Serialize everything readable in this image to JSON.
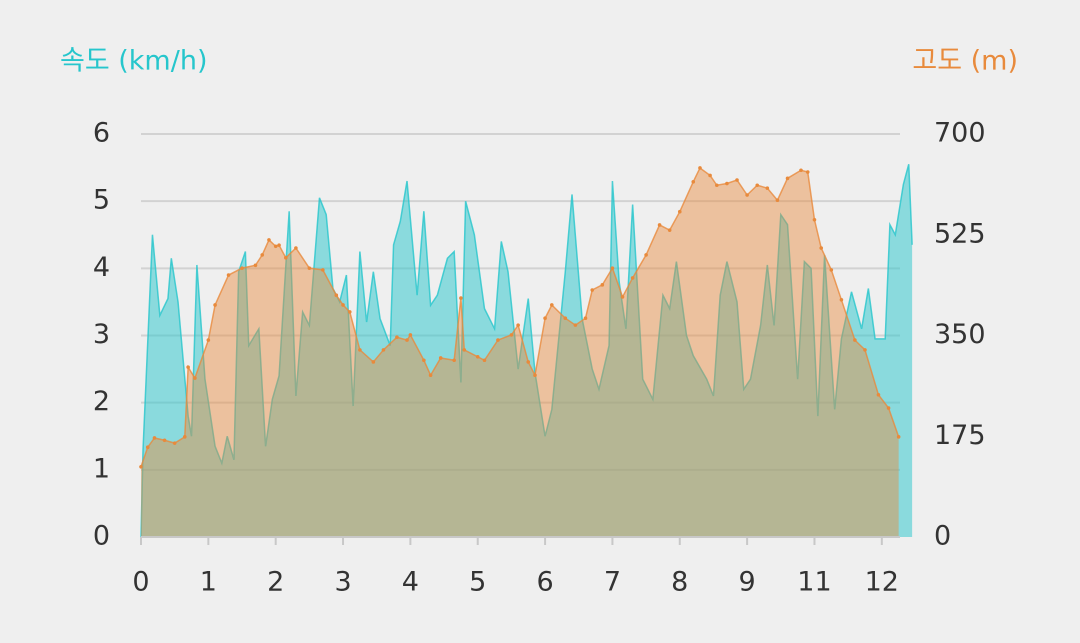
{
  "chart_data": {
    "type": "area",
    "xlim": [
      0,
      11.27
    ],
    "xticks": [
      0,
      1,
      2,
      3,
      4,
      5,
      6,
      7,
      8,
      9,
      {
        "value": 10,
        "label": "11"
      },
      {
        "value": 11,
        "label": "12"
      }
    ],
    "ylim": [
      0,
      6
    ],
    "yticks": [
      0,
      1,
      2,
      3,
      4,
      5,
      6
    ],
    "y2lim": [
      0,
      700
    ],
    "y2ticks": [
      0,
      175,
      350,
      525,
      700
    ],
    "grid": true,
    "series": [
      {
        "name": "속도 (km/h)",
        "color": "#26c6cc",
        "x": [
          0,
          0.03,
          0.17,
          0.28,
          0.4,
          0.45,
          0.55,
          0.7,
          0.75,
          0.83,
          0.95,
          1.1,
          1.2,
          1.28,
          1.38,
          1.45,
          1.55,
          1.6,
          1.75,
          1.85,
          1.95,
          2.05,
          2.2,
          2.3,
          2.4,
          2.5,
          2.65,
          2.75,
          2.85,
          2.95,
          3.05,
          3.15,
          3.25,
          3.35,
          3.45,
          3.55,
          3.7,
          3.75,
          3.85,
          3.95,
          4.1,
          4.2,
          4.3,
          4.4,
          4.55,
          4.65,
          4.75,
          4.82,
          4.95,
          5.1,
          5.25,
          5.35,
          5.45,
          5.6,
          5.75,
          5.85,
          6.0,
          6.1,
          6.3,
          6.4,
          6.55,
          6.7,
          6.8,
          6.95,
          7.0,
          7.1,
          7.2,
          7.3,
          7.45,
          7.6,
          7.75,
          7.85,
          7.95,
          8.1,
          8.2,
          8.4,
          8.5,
          8.6,
          8.7,
          8.85,
          8.95,
          9.05,
          9.2,
          9.3,
          9.4,
          9.5,
          9.6,
          9.75,
          9.85,
          9.95,
          10.05,
          10.15,
          10.3,
          10.4,
          10.55,
          10.7,
          10.8,
          10.9,
          11.05,
          11.12,
          11.2,
          11.32,
          11.4,
          11.45
        ],
        "values": [
          0,
          1.3,
          4.5,
          3.3,
          3.55,
          4.15,
          3.5,
          1.8,
          1.5,
          4.05,
          2.35,
          1.35,
          1.1,
          1.5,
          1.15,
          3.95,
          4.25,
          2.85,
          3.1,
          1.35,
          2.05,
          2.4,
          4.85,
          2.1,
          3.35,
          3.15,
          5.05,
          4.8,
          3.7,
          3.5,
          3.9,
          1.95,
          4.25,
          3.2,
          3.95,
          3.25,
          2.85,
          4.35,
          4.7,
          5.3,
          3.6,
          4.85,
          3.45,
          3.6,
          4.15,
          4.25,
          2.3,
          5.0,
          4.5,
          3.4,
          3.1,
          4.4,
          3.95,
          2.5,
          3.55,
          2.45,
          1.5,
          1.9,
          3.95,
          5.1,
          3.25,
          2.5,
          2.2,
          2.85,
          5.3,
          3.8,
          3.1,
          4.95,
          2.35,
          2.05,
          3.6,
          3.4,
          4.1,
          3.0,
          2.7,
          2.35,
          2.1,
          3.6,
          4.1,
          3.5,
          2.2,
          2.35,
          3.15,
          4.05,
          3.15,
          4.8,
          4.65,
          2.35,
          4.1,
          4.0,
          1.8,
          4.2,
          1.9,
          2.95,
          3.65,
          3.1,
          3.7,
          2.95,
          2.95,
          4.65,
          4.5,
          5.25,
          5.55,
          4.35
        ]
      },
      {
        "name": "고도 (m)",
        "color": "#e88a3c",
        "axis": "y2",
        "x": [
          0,
          0.1,
          0.2,
          0.35,
          0.5,
          0.65,
          0.7,
          0.8,
          1.0,
          1.1,
          1.3,
          1.5,
          1.7,
          1.8,
          1.9,
          2.0,
          2.05,
          2.15,
          2.3,
          2.5,
          2.7,
          2.9,
          3.0,
          3.1,
          3.25,
          3.45,
          3.6,
          3.8,
          3.95,
          4.0,
          4.2,
          4.3,
          4.45,
          4.65,
          4.75,
          4.8,
          5.0,
          5.1,
          5.3,
          5.5,
          5.6,
          5.75,
          5.85,
          6.0,
          6.1,
          6.3,
          6.45,
          6.6,
          6.7,
          6.85,
          7.0,
          7.15,
          7.3,
          7.5,
          7.7,
          7.85,
          8.0,
          8.2,
          8.3,
          8.45,
          8.55,
          8.7,
          8.85,
          9.0,
          9.15,
          9.3,
          9.45,
          9.6,
          9.8,
          9.9,
          10.0,
          10.1,
          10.25,
          10.4,
          10.6,
          10.75,
          10.95,
          11.1,
          11.25
        ],
        "values": [
          122,
          156,
          172,
          168,
          163,
          174,
          295,
          276,
          342,
          403,
          455,
          467,
          472,
          490,
          516,
          505,
          507,
          485,
          502,
          467,
          464,
          420,
          403,
          391,
          325,
          304,
          325,
          347,
          342,
          351,
          307,
          281,
          311,
          307,
          415,
          325,
          313,
          307,
          342,
          351,
          368,
          304,
          281,
          380,
          403,
          380,
          368,
          380,
          429,
          438,
          467,
          417,
          450,
          490,
          542,
          533,
          565,
          617,
          641,
          628,
          611,
          614,
          620,
          594,
          611,
          606,
          585,
          623,
          637,
          634,
          551,
          502,
          464,
          412,
          342,
          325,
          247,
          224,
          174
        ]
      }
    ]
  }
}
